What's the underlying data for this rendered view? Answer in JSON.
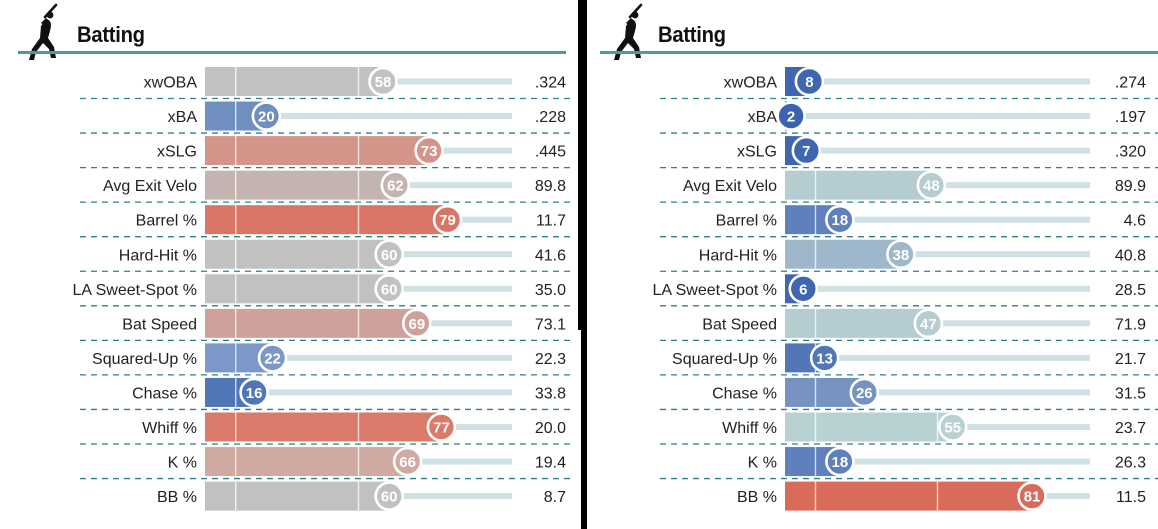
{
  "chart_data": [
    {
      "type": "bar",
      "title": "Batting",
      "x_range": [
        0,
        100
      ],
      "categories": [
        "xwOBA",
        "xBA",
        "xSLG",
        "Avg Exit Velo",
        "Barrel %",
        "Hard-Hit %",
        "LA Sweet-Spot %",
        "Bat Speed",
        "Squared-Up %",
        "Chase %",
        "Whiff %",
        "K %",
        "BB %"
      ],
      "series": [
        {
          "values": [
            58,
            20,
            73,
            62,
            79,
            60,
            60,
            69,
            22,
            16,
            77,
            66,
            60
          ]
        }
      ],
      "stat_values": [
        ".324",
        ".228",
        ".445",
        "89.8",
        "11.7",
        "41.6",
        "35.0",
        "73.1",
        "22.3",
        "33.8",
        "20.0",
        "19.4",
        "8.7"
      ],
      "bar_colors": [
        "#c1c3c1",
        "#6e8fc0",
        "#d3948a",
        "#c3b4b0",
        "#d97565",
        "#c1c1c0",
        "#c1c1c0",
        "#cea29b",
        "#7b98c8",
        "#4f76b6",
        "#d97a6a",
        "#cfaaa2",
        "#c1c1c0"
      ]
    },
    {
      "type": "bar",
      "title": "Batting",
      "x_range": [
        0,
        100
      ],
      "categories": [
        "xwOBA",
        "xBA",
        "xSLG",
        "Avg Exit Velo",
        "Barrel %",
        "Hard-Hit %",
        "LA Sweet-Spot %",
        "Bat Speed",
        "Squared-Up %",
        "Chase %",
        "Whiff %",
        "K %",
        "BB %"
      ],
      "series": [
        {
          "values": [
            8,
            2,
            7,
            48,
            18,
            38,
            6,
            47,
            13,
            26,
            55,
            18,
            81
          ]
        }
      ],
      "stat_values": [
        ".274",
        ".197",
        ".320",
        "89.9",
        "4.6",
        "40.8",
        "28.5",
        "71.9",
        "21.7",
        "31.5",
        "23.7",
        "26.3",
        "11.5"
      ],
      "bar_colors": [
        "#3f66b0",
        "#3a62ad",
        "#3f66b0",
        "#b5cdd1",
        "#5f80bd",
        "#9fb7cb",
        "#3f66b0",
        "#b5cdd1",
        "#5376b7",
        "#7592c1",
        "#b8d1d3",
        "#5f80bd",
        "#d96b5b"
      ]
    }
  ],
  "colors": {
    "track": "#cfe1e2",
    "rule": "#4f9a98",
    "dash": "#2f7f8b",
    "background_bar": "#ffffff",
    "text": "#222222"
  },
  "icons": {
    "header": "batter-silhouette-icon"
  }
}
